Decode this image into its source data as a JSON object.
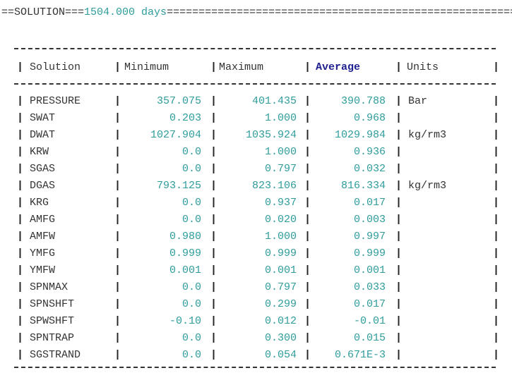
{
  "header": {
    "prefix": "==SOLUTION===",
    "time": "1504.000 days",
    "rule": "========================================================"
  },
  "table": {
    "columns": [
      "Solution",
      "Minimum",
      "Maximum",
      "Average",
      "Units"
    ],
    "rows": [
      {
        "name": "PRESSURE",
        "minimum": "357.075",
        "maximum": "401.435",
        "average": "390.788",
        "units": "Bar"
      },
      {
        "name": "SWAT",
        "minimum": "0.203",
        "maximum": "1.000",
        "average": "0.968"
      },
      {
        "name": "DWAT",
        "minimum": "1027.904",
        "maximum": "1035.924",
        "average": "1029.984",
        "units": "kg/rm3"
      },
      {
        "name": "KRW",
        "minimum": "0.0",
        "maximum": "1.000",
        "average": "0.936"
      },
      {
        "name": "SGAS",
        "minimum": "0.0",
        "maximum": "0.797",
        "average": "0.032"
      },
      {
        "name": "DGAS",
        "minimum": "793.125",
        "maximum": "823.106",
        "average": "816.334",
        "units": "kg/rm3"
      },
      {
        "name": "KRG",
        "minimum": "0.0",
        "maximum": "0.937",
        "average": "0.017"
      },
      {
        "name": "AMFG",
        "minimum": "0.0",
        "maximum": "0.020",
        "average": "0.003"
      },
      {
        "name": "AMFW",
        "minimum": "0.980",
        "maximum": "1.000",
        "average": "0.997"
      },
      {
        "name": "YMFG",
        "minimum": "0.999",
        "maximum": "0.999",
        "average": "0.999"
      },
      {
        "name": "YMFW",
        "minimum": "0.001",
        "maximum": "0.001",
        "average": "0.001"
      },
      {
        "name": "SPNMAX",
        "minimum": "0.0",
        "maximum": "0.797",
        "average": "0.033"
      },
      {
        "name": "SPNSHFT",
        "minimum": "0.0",
        "maximum": "0.299",
        "average": "0.017"
      },
      {
        "name": "SPWSHFT",
        "minimum": "-0.10",
        "maximum": "0.012",
        "average": "-0.01"
      },
      {
        "name": "SPNTRAP",
        "minimum": "0.0",
        "maximum": "0.300",
        "average": "0.015"
      },
      {
        "name": "SGSTRAND",
        "minimum": "0.0",
        "maximum": "0.054",
        "average": "0.671E-3"
      }
    ]
  }
}
